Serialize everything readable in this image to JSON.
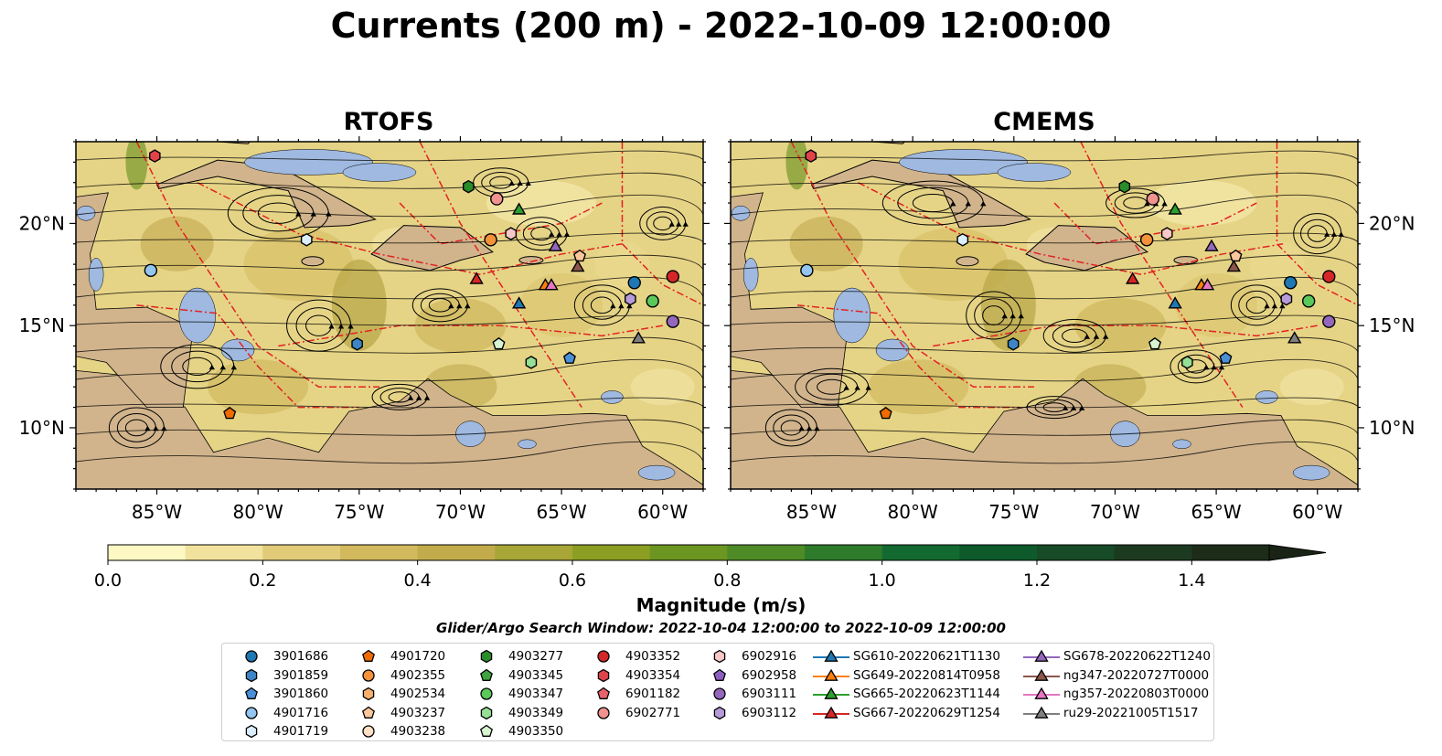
{
  "title": "Currents (200 m) - 2022-10-09 12:00:00",
  "panels": [
    {
      "title": "RTOFS"
    },
    {
      "title": "CMEMS"
    }
  ],
  "axes": {
    "x_ticks": [
      "85°W",
      "80°W",
      "75°W",
      "70°W",
      "65°W",
      "60°W"
    ],
    "y_ticks": [
      "20°N",
      "15°N",
      "10°N"
    ],
    "lon_range": [
      -89.0,
      -58.0
    ],
    "lat_range": [
      7.0,
      24.0
    ]
  },
  "colorbar": {
    "label": "Magnitude (m/s)",
    "ticks": [
      "0.0",
      "0.2",
      "0.4",
      "0.6",
      "0.8",
      "1.0",
      "1.2",
      "1.4"
    ],
    "colors": [
      "#fdf8c4",
      "#f1e29d",
      "#e2cb78",
      "#d3b95e",
      "#c2ab4b",
      "#a7a636",
      "#8c9f23",
      "#6c9622",
      "#4e8b26",
      "#2e7b2c",
      "#136a30",
      "#0e5a2b",
      "#174a26",
      "#1c3a20",
      "#1d2c19",
      "#1a2416"
    ],
    "extend": "max"
  },
  "colors": {
    "land": "#d1b48c",
    "shallow": "#9fb9e0",
    "eez": "#e32222",
    "stream": "#000000"
  },
  "search_window": "Glider/Argo Search Window: 2022-10-04 12:00:00 to 2022-10-09 12:00:00",
  "legend": {
    "columns": [
      [
        {
          "label": "3901686",
          "marker": "circle",
          "color": "#1f77b4"
        },
        {
          "label": "3901859",
          "marker": "hexagon",
          "color": "#3d85c6"
        },
        {
          "label": "3901860",
          "marker": "pentagon",
          "color": "#4a90d9"
        },
        {
          "label": "4901716",
          "marker": "circle",
          "color": "#93c5f0"
        },
        {
          "label": "4901719",
          "marker": "hexagon",
          "color": "#dbeefc"
        }
      ],
      [
        {
          "label": "4901720",
          "marker": "pentagon",
          "color": "#ef6c00"
        },
        {
          "label": "4902355",
          "marker": "circle",
          "color": "#f3923a"
        },
        {
          "label": "4902534",
          "marker": "hexagon",
          "color": "#f7b06e"
        },
        {
          "label": "4903237",
          "marker": "pentagon",
          "color": "#fac79d"
        },
        {
          "label": "4903238",
          "marker": "circle",
          "color": "#fde0c5"
        }
      ],
      [
        {
          "label": "4903277",
          "marker": "hexagon",
          "color": "#2a8c2a"
        },
        {
          "label": "4903345",
          "marker": "pentagon",
          "color": "#3fa33f"
        },
        {
          "label": "4903347",
          "marker": "circle",
          "color": "#5bc85b"
        },
        {
          "label": "4903349",
          "marker": "hexagon",
          "color": "#95e095"
        },
        {
          "label": "4903350",
          "marker": "pentagon",
          "color": "#d6f5d0"
        }
      ],
      [
        {
          "label": "4903352",
          "marker": "circle",
          "color": "#d62728"
        },
        {
          "label": "4903354",
          "marker": "hexagon",
          "color": "#e0434a"
        },
        {
          "label": "6901182",
          "marker": "pentagon",
          "color": "#e8626a"
        },
        {
          "label": "6902771",
          "marker": "circle",
          "color": "#f0928f"
        }
      ],
      [
        {
          "label": "6902916",
          "marker": "hexagon",
          "color": "#f8c8c8"
        },
        {
          "label": "6902958",
          "marker": "pentagon",
          "color": "#8e5fc2"
        },
        {
          "label": "6903111",
          "marker": "circle",
          "color": "#9467bd"
        },
        {
          "label": "6903112",
          "marker": "hexagon",
          "color": "#b79ad9"
        }
      ],
      [
        {
          "label": "SG610-20220621T1130",
          "marker": "triangle",
          "color": "#1f77b4"
        },
        {
          "label": "SG649-20220814T0958",
          "marker": "triangle",
          "color": "#ff7f0e"
        },
        {
          "label": "SG665-20220623T1144",
          "marker": "triangle",
          "color": "#2ca02c"
        },
        {
          "label": "SG667-20220629T1254",
          "marker": "triangle",
          "color": "#d62728"
        }
      ],
      [
        {
          "label": "SG678-20220622T1240",
          "marker": "triangle",
          "color": "#9467bd"
        },
        {
          "label": "ng347-20220727T0000",
          "marker": "triangle",
          "color": "#8c564b"
        },
        {
          "label": "ng357-20220803T0000",
          "marker": "triangle",
          "color": "#e377c2"
        },
        {
          "label": "ru29-20221005T1517",
          "marker": "triangle",
          "color": "#7f7f7f"
        }
      ]
    ]
  },
  "chart_data": {
    "type": "scatter",
    "title": "Currents (200 m) - 2022-10-09 12:00:00",
    "xlim": [
      -89.0,
      -58.0
    ],
    "ylim": [
      7.0,
      24.0
    ],
    "series": [
      {
        "name": "3901686",
        "x": [
          -61.4
        ],
        "y": [
          17.1
        ]
      },
      {
        "name": "3901859",
        "x": [
          -75.1
        ],
        "y": [
          14.1
        ]
      },
      {
        "name": "3901860",
        "x": [
          -64.6
        ],
        "y": [
          13.4
        ]
      },
      {
        "name": "4901716",
        "x": [
          -85.3
        ],
        "y": [
          17.7
        ]
      },
      {
        "name": "4901719",
        "x": [
          -77.6
        ],
        "y": [
          19.2
        ]
      },
      {
        "name": "4901720",
        "x": [
          -81.4
        ],
        "y": [
          10.7
        ]
      },
      {
        "name": "4902355",
        "x": [
          -68.5
        ],
        "y": [
          19.2
        ]
      },
      {
        "name": "4903237",
        "x": [
          -64.1
        ],
        "y": [
          18.4
        ]
      },
      {
        "name": "4903277",
        "x": [
          -69.6
        ],
        "y": [
          21.8
        ]
      },
      {
        "name": "4903347",
        "x": [
          -60.5
        ],
        "y": [
          16.2
        ]
      },
      {
        "name": "4903349",
        "x": [
          -66.5
        ],
        "y": [
          13.2
        ]
      },
      {
        "name": "4903350",
        "x": [
          -68.1
        ],
        "y": [
          14.1
        ]
      },
      {
        "name": "4903352",
        "x": [
          -59.5
        ],
        "y": [
          17.4
        ]
      },
      {
        "name": "4903354",
        "x": [
          -85.1
        ],
        "y": [
          23.3
        ]
      },
      {
        "name": "6902771",
        "x": [
          -68.2
        ],
        "y": [
          21.2
        ]
      },
      {
        "name": "6902916",
        "x": [
          -67.5
        ],
        "y": [
          19.5
        ]
      },
      {
        "name": "6903111",
        "x": [
          -59.5
        ],
        "y": [
          15.2
        ]
      },
      {
        "name": "6903112",
        "x": [
          -61.6
        ],
        "y": [
          16.3
        ]
      },
      {
        "name": "SG610-20220621T1130",
        "x": [
          -67.1
        ],
        "y": [
          16.1
        ]
      },
      {
        "name": "SG649-20220814T0958",
        "x": [
          -65.8
        ],
        "y": [
          17.0
        ]
      },
      {
        "name": "SG665-20220623T1144",
        "x": [
          -67.1
        ],
        "y": [
          20.7
        ]
      },
      {
        "name": "SG667-20220629T1254",
        "x": [
          -69.2
        ],
        "y": [
          17.3
        ]
      },
      {
        "name": "SG678-20220622T1240",
        "x": [
          -65.3
        ],
        "y": [
          18.9
        ]
      },
      {
        "name": "ng347-20220727T0000",
        "x": [
          -64.2
        ],
        "y": [
          17.9
        ]
      },
      {
        "name": "ng357-20220803T0000",
        "x": [
          -65.5
        ],
        "y": [
          17.0
        ]
      },
      {
        "name": "ru29-20221005T1517",
        "x": [
          -61.2
        ],
        "y": [
          14.4
        ]
      }
    ]
  }
}
